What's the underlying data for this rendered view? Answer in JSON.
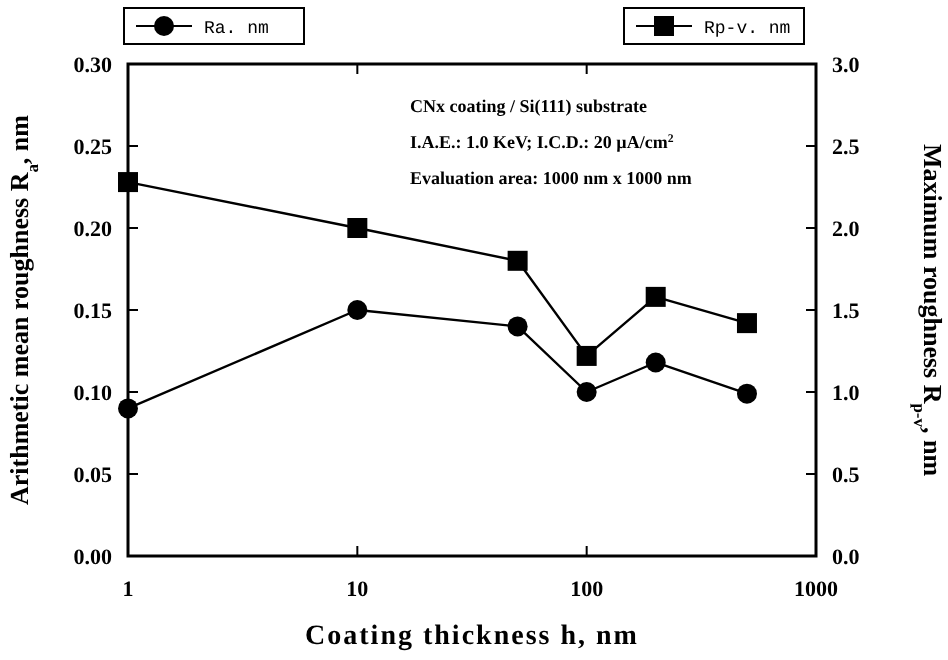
{
  "chart_data": {
    "type": "line",
    "xlabel": "Coating thickness h, nm",
    "ylabel": "Arithmetic mean roughness R$_{a}$, nm",
    "y2label": "Maximum roughness R$_{p-v}$, nm",
    "x": [
      1,
      10,
      50,
      100,
      200,
      500
    ],
    "log": "x",
    "legend": "top",
    "grid": false,
    "xlim": [
      1,
      1000
    ],
    "xticks": [
      1,
      10,
      100,
      1000
    ],
    "ylim": [
      0,
      0.3
    ],
    "yticks": [
      {
        "value": 0,
        "label": "0.00"
      },
      {
        "value": 0.05,
        "label": "0.05"
      },
      {
        "value": 0.1,
        "label": "0.10"
      },
      {
        "value": 0.15,
        "label": "0.15"
      },
      {
        "value": 0.2,
        "label": "0.20"
      },
      {
        "value": 0.25,
        "label": "0.25"
      },
      {
        "value": 0.3,
        "label": "0.30"
      }
    ],
    "y2lim": [
      0,
      3
    ],
    "y2ticks": [
      {
        "value": 0,
        "label": "0.0"
      },
      {
        "value": 0.5,
        "label": "0.5"
      },
      {
        "value": 1,
        "label": "1.0"
      },
      {
        "value": 1.5,
        "label": "1.5"
      },
      {
        "value": 2,
        "label": "2.0"
      },
      {
        "value": 2.5,
        "label": "2.5"
      },
      {
        "value": 3,
        "label": "3.0"
      }
    ],
    "series": [
      {
        "name": "Ra. nm",
        "color": "#000000",
        "values": [
          0.09,
          0.15,
          0.14,
          0.1,
          0.118,
          0.099
        ],
        "marker": "circle"
      },
      {
        "name": "Rp-v. nm",
        "color": "#000000",
        "values": [
          2.28,
          2.0,
          1.8,
          1.22,
          1.58,
          1.42
        ],
        "marker": "square",
        "axis": "y2"
      }
    ],
    "annotations": [
      "CNx coating / Si(111) substrate",
      "I.A.E.: 1.0 KeV; I.C.D.: 20 µA/cm$^{2}$",
      "Evaluation area: 1000 nm x 1000 nm"
    ]
  }
}
